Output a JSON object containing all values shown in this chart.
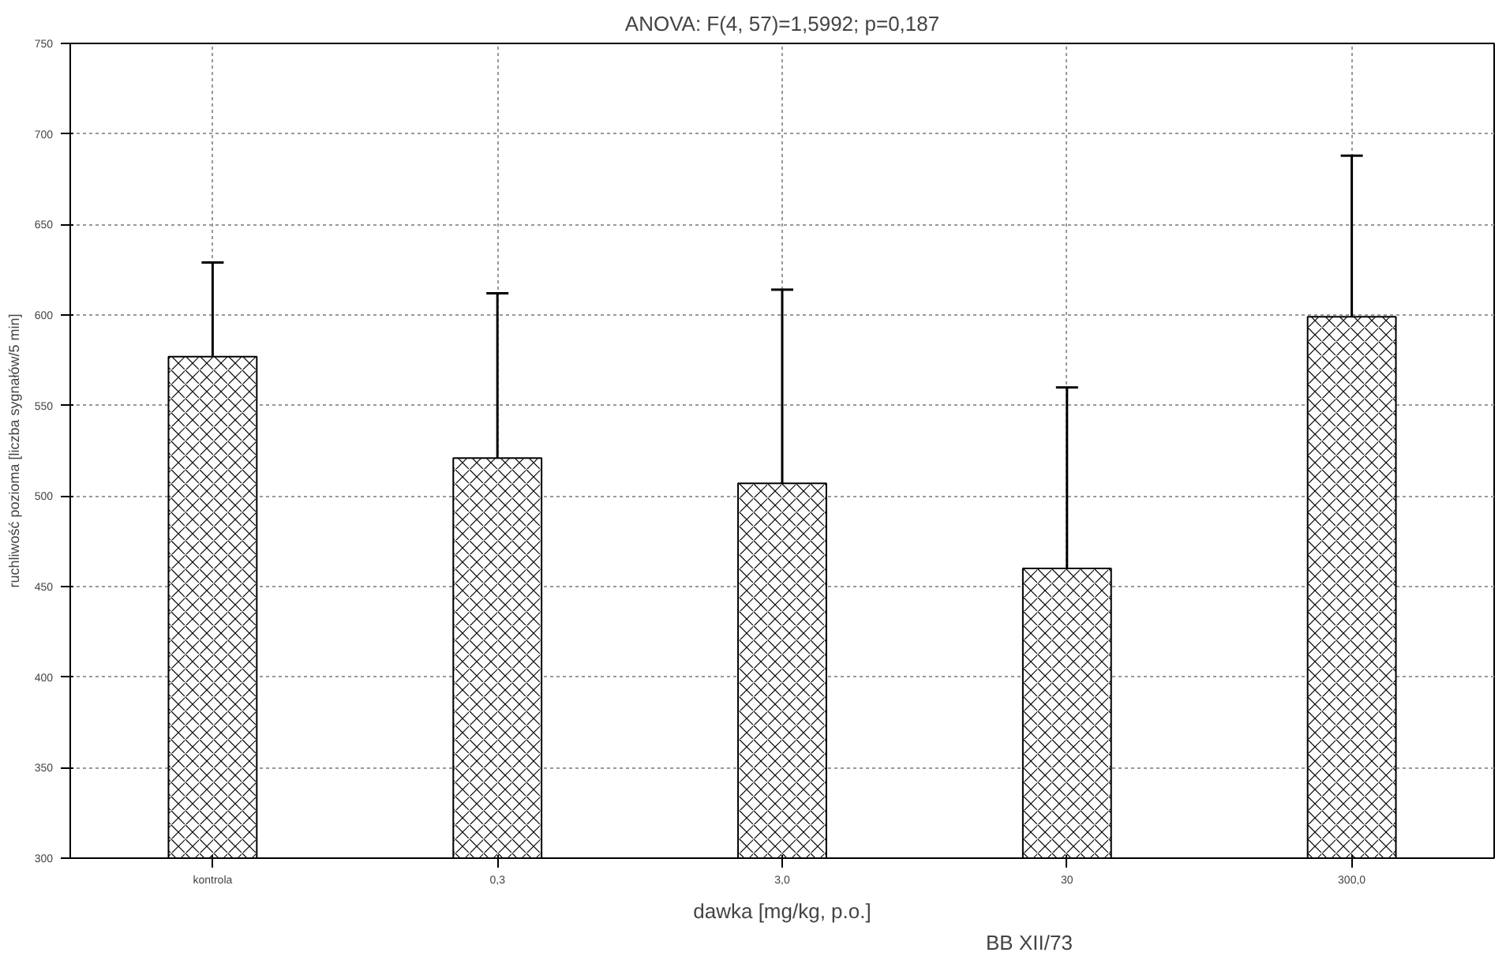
{
  "chart_data": {
    "type": "bar",
    "title": "ANOVA: F(4, 57)=1,5992; p=0,187",
    "xlabel": "dawka [mg/kg, p.o.]",
    "ylabel": "ruchliwość pozioma [liczba sygnałów/5 min]",
    "categories": [
      "kontrola",
      "0,3",
      "3,0",
      "30",
      "300,0"
    ],
    "values": [
      577,
      521,
      507,
      460,
      599
    ],
    "errors": [
      52,
      91,
      107,
      100,
      89
    ],
    "color": "#ffffff",
    "ylim": [
      300,
      750
    ],
    "yticks": [
      300,
      350,
      400,
      450,
      500,
      550,
      600,
      650,
      700,
      750
    ],
    "grid": true,
    "annotations": [
      "BB XII/73"
    ]
  }
}
